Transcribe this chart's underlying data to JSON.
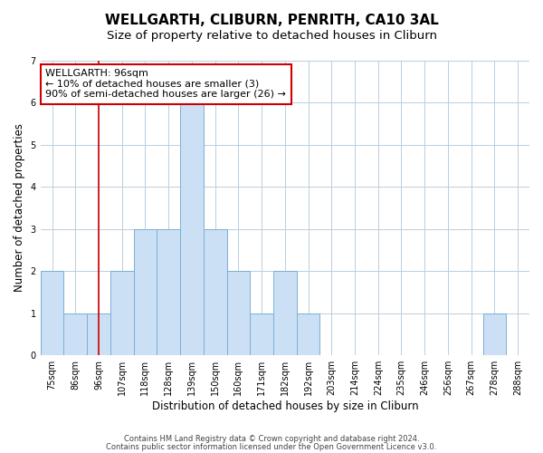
{
  "title": "WELLGARTH, CLIBURN, PENRITH, CA10 3AL",
  "subtitle": "Size of property relative to detached houses in Cliburn",
  "xlabel": "Distribution of detached houses by size in Cliburn",
  "ylabel": "Number of detached properties",
  "categories": [
    "75sqm",
    "86sqm",
    "96sqm",
    "107sqm",
    "118sqm",
    "128sqm",
    "139sqm",
    "150sqm",
    "160sqm",
    "171sqm",
    "182sqm",
    "192sqm",
    "203sqm",
    "214sqm",
    "224sqm",
    "235sqm",
    "246sqm",
    "256sqm",
    "267sqm",
    "278sqm",
    "288sqm"
  ],
  "values": [
    2,
    1,
    1,
    2,
    3,
    3,
    6,
    3,
    2,
    1,
    2,
    1,
    0,
    0,
    0,
    0,
    0,
    0,
    0,
    1,
    0
  ],
  "bar_color": "#cce0f5",
  "bar_edge_color": "#7bafd4",
  "vline_color": "#cc0000",
  "vline_index": 2,
  "ylim": [
    0,
    7
  ],
  "yticks": [
    0,
    1,
    2,
    3,
    4,
    5,
    6,
    7
  ],
  "annotation_title": "WELLGARTH: 96sqm",
  "annotation_line1": "← 10% of detached houses are smaller (3)",
  "annotation_line2": "90% of semi-detached houses are larger (26) →",
  "annotation_box_color": "#ffffff",
  "annotation_box_edge": "#cc0000",
  "footer_line1": "Contains HM Land Registry data © Crown copyright and database right 2024.",
  "footer_line2": "Contains public sector information licensed under the Open Government Licence v3.0.",
  "bg_color": "#ffffff",
  "grid_color": "#b8cfe0",
  "title_fontsize": 11,
  "subtitle_fontsize": 9.5,
  "axis_label_fontsize": 8.5,
  "tick_fontsize": 7,
  "footer_fontsize": 6,
  "annotation_fontsize": 8,
  "annotation_title_fontsize": 8.5
}
